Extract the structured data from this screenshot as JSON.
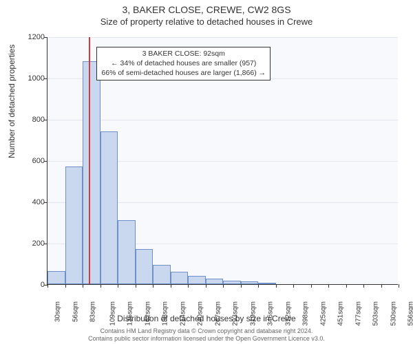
{
  "header": {
    "title_main": "3, BAKER CLOSE, CREWE, CW2 8GS",
    "title_sub": "Size of property relative to detached houses in Crewe"
  },
  "y_axis": {
    "title": "Number of detached properties",
    "min": 0,
    "max": 1200,
    "step": 200,
    "ticks": [
      0,
      200,
      400,
      600,
      800,
      1000,
      1200
    ]
  },
  "x_axis": {
    "title": "Distribution of detached houses by size in Crewe",
    "ticks": [
      "30sqm",
      "56sqm",
      "83sqm",
      "109sqm",
      "135sqm",
      "162sqm",
      "188sqm",
      "214sqm",
      "240sqm",
      "267sqm",
      "293sqm",
      "319sqm",
      "346sqm",
      "372sqm",
      "398sqm",
      "425sqm",
      "451sqm",
      "477sqm",
      "503sqm",
      "530sqm",
      "556sqm"
    ]
  },
  "chart": {
    "type": "histogram",
    "background_color": "#f7f9fc",
    "grid_color": "#e2e6ee",
    "bar_fill": "#c9d7ef",
    "bar_border": "#6f8fc8",
    "marker_color": "#d13a3a",
    "marker_bin_index": 2,
    "marker_fraction_within_bin": 0.35,
    "bars": [
      65,
      570,
      1080,
      740,
      310,
      170,
      95,
      60,
      40,
      28,
      18,
      12,
      8,
      0,
      0,
      0,
      0,
      0,
      0,
      0
    ]
  },
  "info_box": {
    "line1": "3 BAKER CLOSE: 92sqm",
    "line2": "← 34% of detached houses are smaller (957)",
    "line3": "66% of semi-detached houses are larger (1,866) →",
    "left_pct": 14,
    "top_pct": 4
  },
  "footer": {
    "line1": "Contains HM Land Registry data © Crown copyright and database right 2024.",
    "line2": "Contains public sector information licensed under the Open Government Licence v3.0."
  }
}
